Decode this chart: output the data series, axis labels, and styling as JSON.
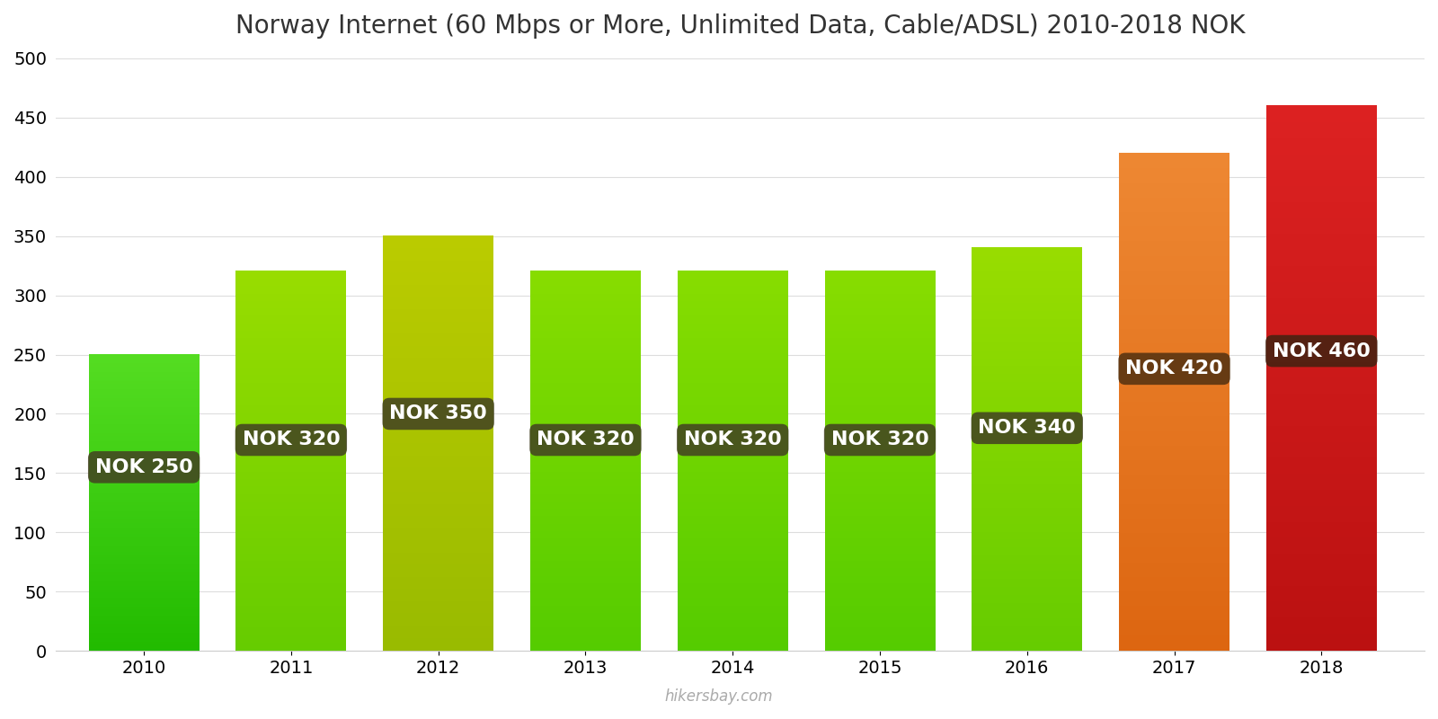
{
  "title": "Norway Internet (60 Mbps or More, Unlimited Data, Cable/ADSL) 2010-2018 NOK",
  "years": [
    2010,
    2011,
    2012,
    2013,
    2014,
    2015,
    2016,
    2017,
    2018
  ],
  "values": [
    250,
    320,
    350,
    320,
    320,
    320,
    340,
    420,
    460
  ],
  "bar_colors_top": [
    "#55dd22",
    "#99dd00",
    "#bbcc00",
    "#88dd00",
    "#88dd00",
    "#88dd00",
    "#99dd00",
    "#ee8833",
    "#dd2222"
  ],
  "bar_colors_bottom": [
    "#22bb00",
    "#66cc00",
    "#99bb00",
    "#55cc00",
    "#55cc00",
    "#55cc00",
    "#66cc00",
    "#dd6611",
    "#bb1111"
  ],
  "label_bg_colors": [
    "#444422",
    "#444422",
    "#444422",
    "#444422",
    "#444422",
    "#444422",
    "#444422",
    "#553311",
    "#442211"
  ],
  "labels": [
    "NOK 250",
    "NOK 320",
    "NOK 350",
    "NOK 320",
    "NOK 320",
    "NOK 320",
    "NOK 340",
    "NOK 420",
    "NOK 460"
  ],
  "label_y_positions": [
    155,
    178,
    200,
    178,
    178,
    178,
    188,
    238,
    253
  ],
  "ylim": [
    0,
    500
  ],
  "yticks": [
    0,
    50,
    100,
    150,
    200,
    250,
    300,
    350,
    400,
    450,
    500
  ],
  "watermark": "hikersbay.com",
  "background_color": "#ffffff",
  "title_fontsize": 20,
  "label_fontsize": 16,
  "tick_fontsize": 14,
  "bar_width": 0.75
}
